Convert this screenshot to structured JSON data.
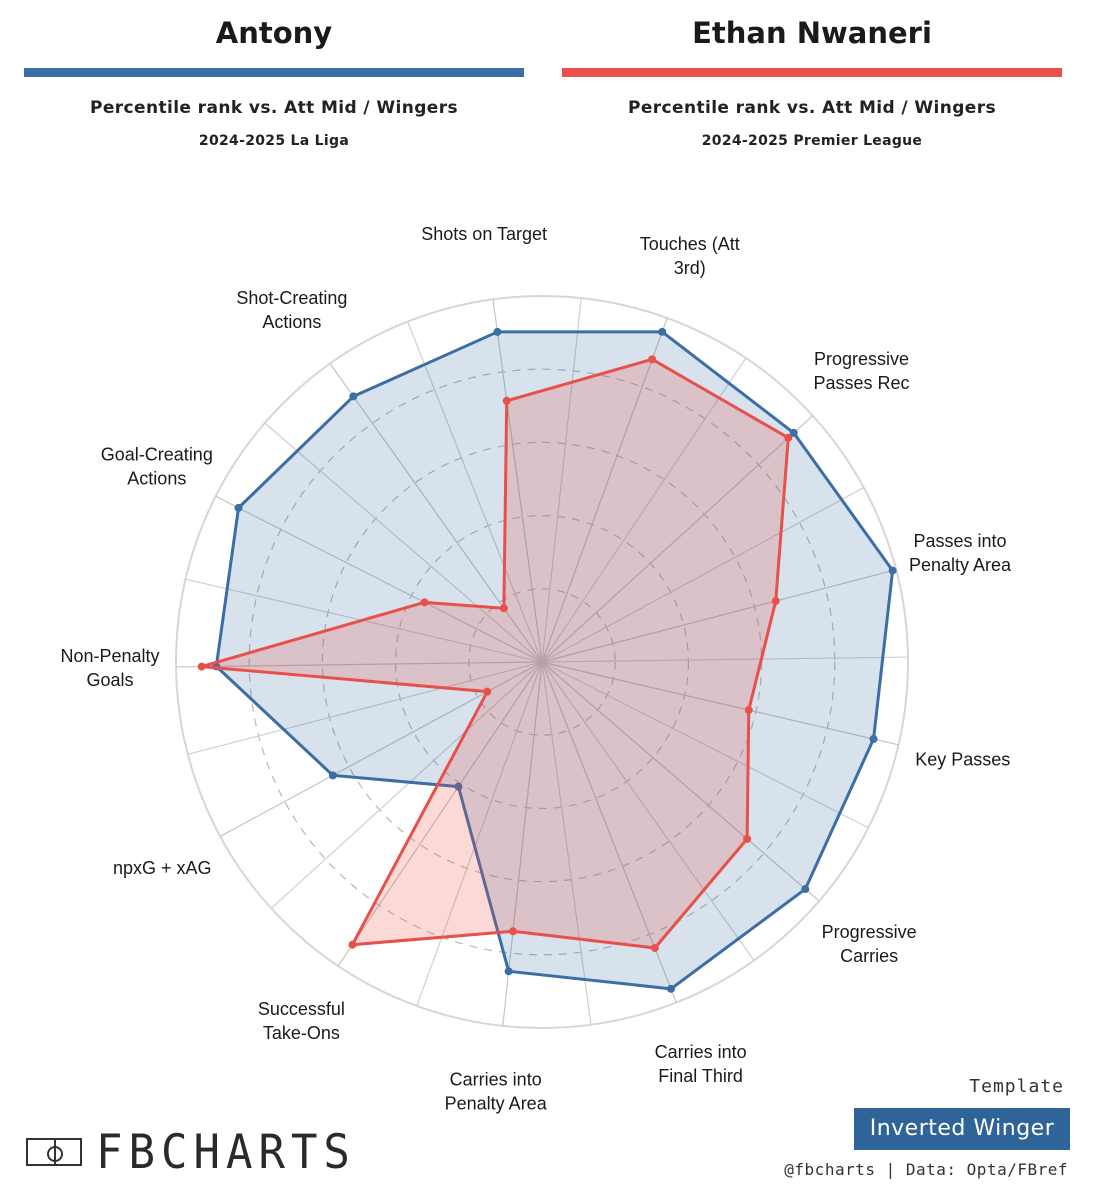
{
  "players": [
    {
      "name": "Antony",
      "comparison": "Percentile rank vs. Att Mid / Wingers",
      "season_league": "2024-2025 La Liga",
      "color": "#3b6ea5",
      "fill": "rgba(59,110,165,0.20)"
    },
    {
      "name": "Ethan Nwaneri",
      "comparison": "Percentile rank vs. Att Mid / Wingers",
      "season_league": "2024-2025 Premier League",
      "color": "#e8504a",
      "fill": "rgba(232,80,74,0.22)"
    }
  ],
  "chart_data": {
    "type": "radar",
    "axes": [
      [
        "Touches (Att",
        "3rd)"
      ],
      [
        "Progressive",
        "Passes Rec"
      ],
      [
        "Passes into",
        "Penalty Area"
      ],
      [
        "Key Passes"
      ],
      [
        "Progressive",
        "Carries"
      ],
      [
        "Carries into",
        "Final Third"
      ],
      [
        "Carries into",
        "Penalty Area"
      ],
      [
        "Successful",
        "Take-Ons"
      ],
      [
        "npxG + xAG"
      ],
      [
        "Non-Penalty",
        "Goals"
      ],
      [
        "Goal-Creating",
        "Actions"
      ],
      [
        "Shot-Creating",
        "Actions"
      ],
      [
        "Shots on Target"
      ]
    ],
    "range": [
      0,
      100
    ],
    "rings": [
      20,
      40,
      60,
      80
    ],
    "series": [
      {
        "name": "Antony",
        "values": [
          96,
          93,
          99,
          93,
          95,
          96,
          85,
          41,
          65,
          89,
          93,
          89,
          91
        ]
      },
      {
        "name": "Ethan Nwaneri",
        "values": [
          88,
          91,
          66,
          58,
          74,
          84,
          74,
          93,
          17,
          93,
          36,
          18,
          72
        ]
      }
    ]
  },
  "footer": {
    "template_label": "Template",
    "template_name": "Inverted Winger",
    "template_color": "#2f6498",
    "credit": "@fbcharts | Data: Opta/FBref",
    "logo_text": "FBCHARTS",
    "logo_icon": "pitch-icon"
  }
}
